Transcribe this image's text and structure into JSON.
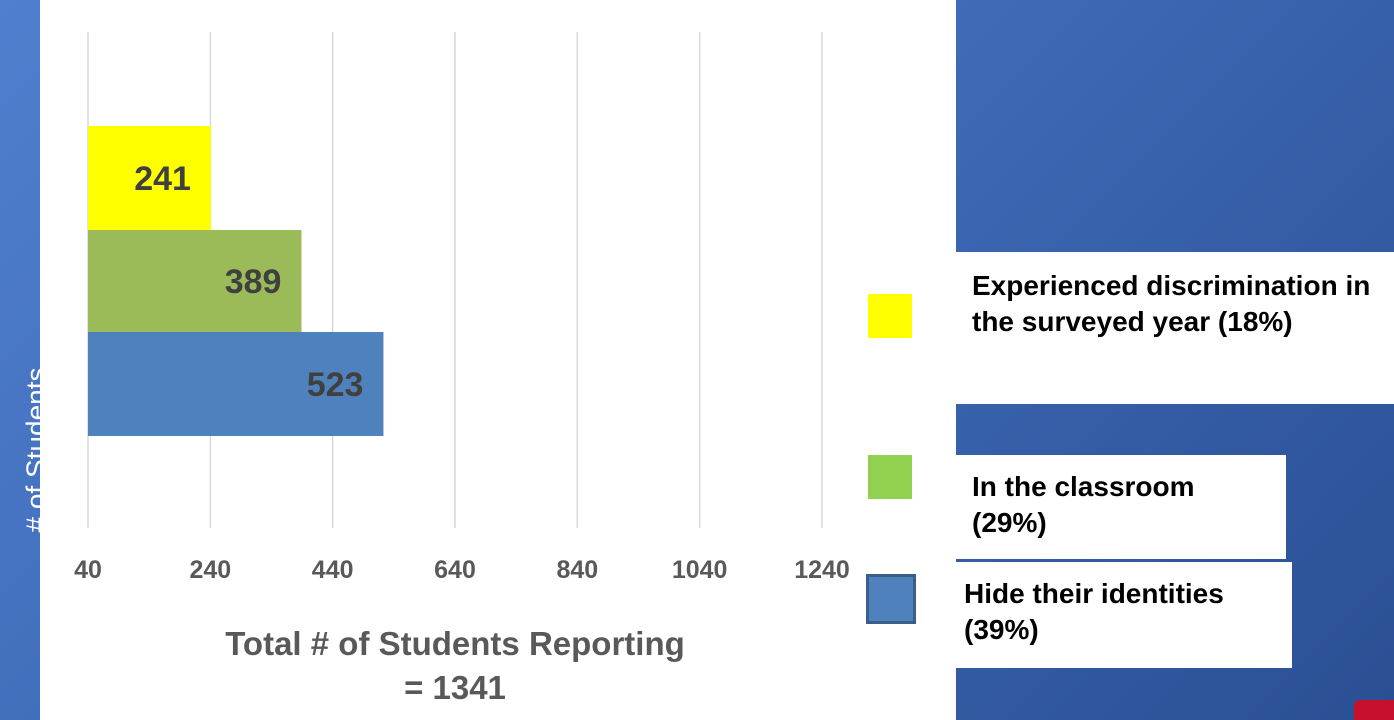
{
  "chart_data": {
    "type": "bar",
    "orientation": "horizontal",
    "categories": [
      "Experienced discrimination in the surveyed year (18%)",
      "In the classroom (29%)",
      "Hide their identities (39%)"
    ],
    "values": [
      241,
      389,
      523
    ],
    "data_labels": [
      "241",
      "389",
      "523"
    ],
    "colors": [
      "#ffff00",
      "#9bbb59",
      "#4f81bd"
    ],
    "xticks": [
      40,
      240,
      440,
      640,
      840,
      1040,
      1240
    ],
    "xtick_labels": [
      "40",
      "240",
      "440",
      "640",
      "840",
      "1040",
      "1240"
    ],
    "xlim": [
      40,
      1340
    ],
    "ylabel": "# of Students",
    "xlabel": "Total # of Students Reporting = 1341",
    "grid": "vertical",
    "legend_position": "right"
  },
  "legend": [
    {
      "label": "Experienced discrimination in the surveyed year (18%)",
      "color": "#ffff00"
    },
    {
      "label": "In the classroom (29%)",
      "color": "#92d050"
    },
    {
      "label": "Hide their identities (39%)",
      "color": "#4f81bd"
    }
  ]
}
